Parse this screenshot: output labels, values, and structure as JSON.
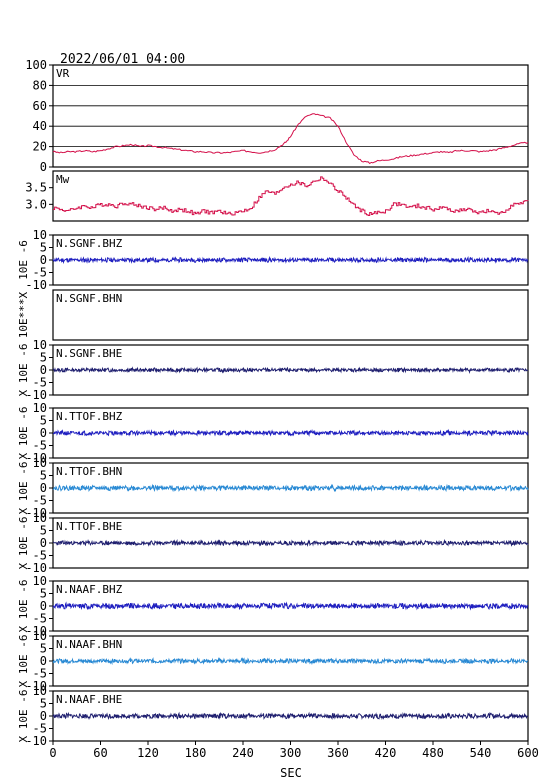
{
  "header": {
    "datetime": "2022/06/01 04:00"
  },
  "chart_data": {
    "type": "line",
    "xlabel": "SEC",
    "xlim": [
      0,
      600
    ],
    "x_ticks": [
      "0",
      "60",
      "120",
      "180",
      "240",
      "300",
      "360",
      "420",
      "480",
      "540",
      "600"
    ],
    "panels": [
      {
        "id": "vr",
        "label": "VR",
        "color": "#d4104a",
        "grid": true,
        "ylim": [
          0,
          100
        ],
        "y_ticks": [
          "0",
          "20",
          "40",
          "60",
          "80",
          "100"
        ],
        "ylabel": "",
        "x": [
          0,
          10,
          20,
          30,
          40,
          50,
          60,
          70,
          80,
          90,
          100,
          110,
          120,
          130,
          140,
          150,
          160,
          170,
          180,
          190,
          200,
          210,
          220,
          230,
          240,
          250,
          260,
          270,
          280,
          290,
          295,
          300,
          310,
          320,
          330,
          340,
          350,
          360,
          370,
          380,
          390,
          400,
          410,
          420,
          430,
          440,
          450,
          460,
          470,
          480,
          490,
          500,
          510,
          520,
          530,
          540,
          550,
          560,
          570,
          580,
          590,
          600
        ],
        "values": [
          15,
          14,
          15,
          15,
          16,
          15,
          16,
          18,
          20,
          21,
          22,
          20,
          21,
          20,
          19,
          18,
          17,
          16,
          15,
          15,
          14,
          14,
          14,
          15,
          16,
          15,
          14,
          15,
          17,
          22,
          25,
          30,
          42,
          50,
          52,
          50,
          48,
          40,
          25,
          12,
          6,
          4,
          6,
          7,
          8,
          10,
          11,
          12,
          13,
          14,
          15,
          14,
          16,
          16,
          16,
          15,
          16,
          17,
          19,
          21,
          23,
          24
        ]
      },
      {
        "id": "mw",
        "label": "Mw",
        "color": "#d4104a",
        "grid": false,
        "ylim": [
          2.5,
          4.0
        ],
        "y_ticks": [
          "3.0",
          "3.5"
        ],
        "ylabel": "",
        "x": [
          0,
          10,
          20,
          30,
          40,
          50,
          60,
          70,
          80,
          90,
          100,
          110,
          120,
          130,
          140,
          150,
          160,
          170,
          180,
          190,
          200,
          210,
          220,
          230,
          240,
          250,
          260,
          270,
          280,
          290,
          300,
          310,
          320,
          330,
          340,
          350,
          360,
          370,
          380,
          390,
          400,
          410,
          420,
          430,
          440,
          450,
          460,
          470,
          480,
          490,
          500,
          510,
          520,
          530,
          540,
          550,
          560,
          570,
          580,
          590,
          600
        ],
        "values": [
          2.9,
          2.85,
          2.8,
          2.9,
          2.95,
          2.9,
          3.0,
          3.0,
          2.95,
          3.05,
          3.0,
          2.95,
          2.9,
          2.85,
          2.9,
          2.8,
          2.85,
          2.8,
          2.7,
          2.8,
          2.75,
          2.8,
          2.7,
          2.75,
          2.8,
          2.9,
          3.2,
          3.4,
          3.3,
          3.5,
          3.6,
          3.65,
          3.55,
          3.7,
          3.8,
          3.6,
          3.4,
          3.2,
          2.95,
          2.8,
          2.7,
          2.75,
          2.8,
          3.0,
          3.0,
          2.9,
          2.95,
          2.9,
          2.85,
          2.9,
          2.85,
          2.8,
          2.85,
          2.8,
          2.75,
          2.8,
          2.7,
          2.8,
          3.0,
          3.0,
          3.1
        ]
      },
      {
        "id": "sgnf-bhz",
        "label": "N.SGNF.BHZ",
        "color": "#2020c0",
        "ylim": [
          -10,
          10
        ],
        "y_ticks": [
          "10",
          "5",
          "0",
          "-5",
          "-10"
        ],
        "ylabel": "10E -6",
        "amp": 0.8,
        "seed": 11
      },
      {
        "id": "sgnf-bhn",
        "label": "N.SGNF.BHN",
        "color": "#2020c0",
        "ylim": [
          -10,
          10
        ],
        "y_ticks": [],
        "ylabel": "10E***X",
        "amp": 0,
        "seed": 12
      },
      {
        "id": "sgnf-bhe",
        "label": "N.SGNF.BHE",
        "color": "#202070",
        "ylim": [
          -10,
          10
        ],
        "y_ticks": [
          "10",
          "5",
          "0",
          "-5",
          "-10"
        ],
        "ylabel": "X 10E -6",
        "amp": 0.7,
        "seed": 13
      },
      {
        "id": "ttof-bhz",
        "label": "N.TTOF.BHZ",
        "color": "#2020c0",
        "ylim": [
          -10,
          10
        ],
        "y_ticks": [
          "10",
          "5",
          "0",
          "-5",
          "-10"
        ],
        "ylabel": "X 10E -6",
        "amp": 0.8,
        "seed": 21
      },
      {
        "id": "ttof-bhn",
        "label": "N.TTOF.BHN",
        "color": "#2a8ad4",
        "ylim": [
          -10,
          10
        ],
        "y_ticks": [
          "10",
          "5",
          "0",
          "-5",
          "-10"
        ],
        "ylabel": "X 10E -6",
        "amp": 0.9,
        "seed": 22
      },
      {
        "id": "ttof-bhe",
        "label": "N.TTOF.BHE",
        "color": "#202070",
        "ylim": [
          -10,
          10
        ],
        "y_ticks": [
          "10",
          "5",
          "0",
          "-5",
          "-10"
        ],
        "ylabel": "X 10E -6",
        "amp": 0.8,
        "seed": 23
      },
      {
        "id": "naaf-bhz",
        "label": "N.NAAF.BHZ",
        "color": "#2020c0",
        "ylim": [
          -10,
          10
        ],
        "y_ticks": [
          "10",
          "5",
          "0",
          "-5",
          "-10"
        ],
        "ylabel": "X 10E -6",
        "amp": 1.0,
        "seed": 31
      },
      {
        "id": "naaf-bhn",
        "label": "N.NAAF.BHN",
        "color": "#2a8ad4",
        "ylim": [
          -10,
          10
        ],
        "y_ticks": [
          "10",
          "5",
          "0",
          "-5",
          "-10"
        ],
        "ylabel": "X 10E -6",
        "amp": 0.8,
        "seed": 32
      },
      {
        "id": "naaf-bhe",
        "label": "N.NAAF.BHE",
        "color": "#202070",
        "ylim": [
          -10,
          10
        ],
        "y_ticks": [
          "10",
          "5",
          "0",
          "-5",
          "-10"
        ],
        "ylabel": "X 10E -6",
        "amp": 0.9,
        "seed": 33
      }
    ]
  }
}
